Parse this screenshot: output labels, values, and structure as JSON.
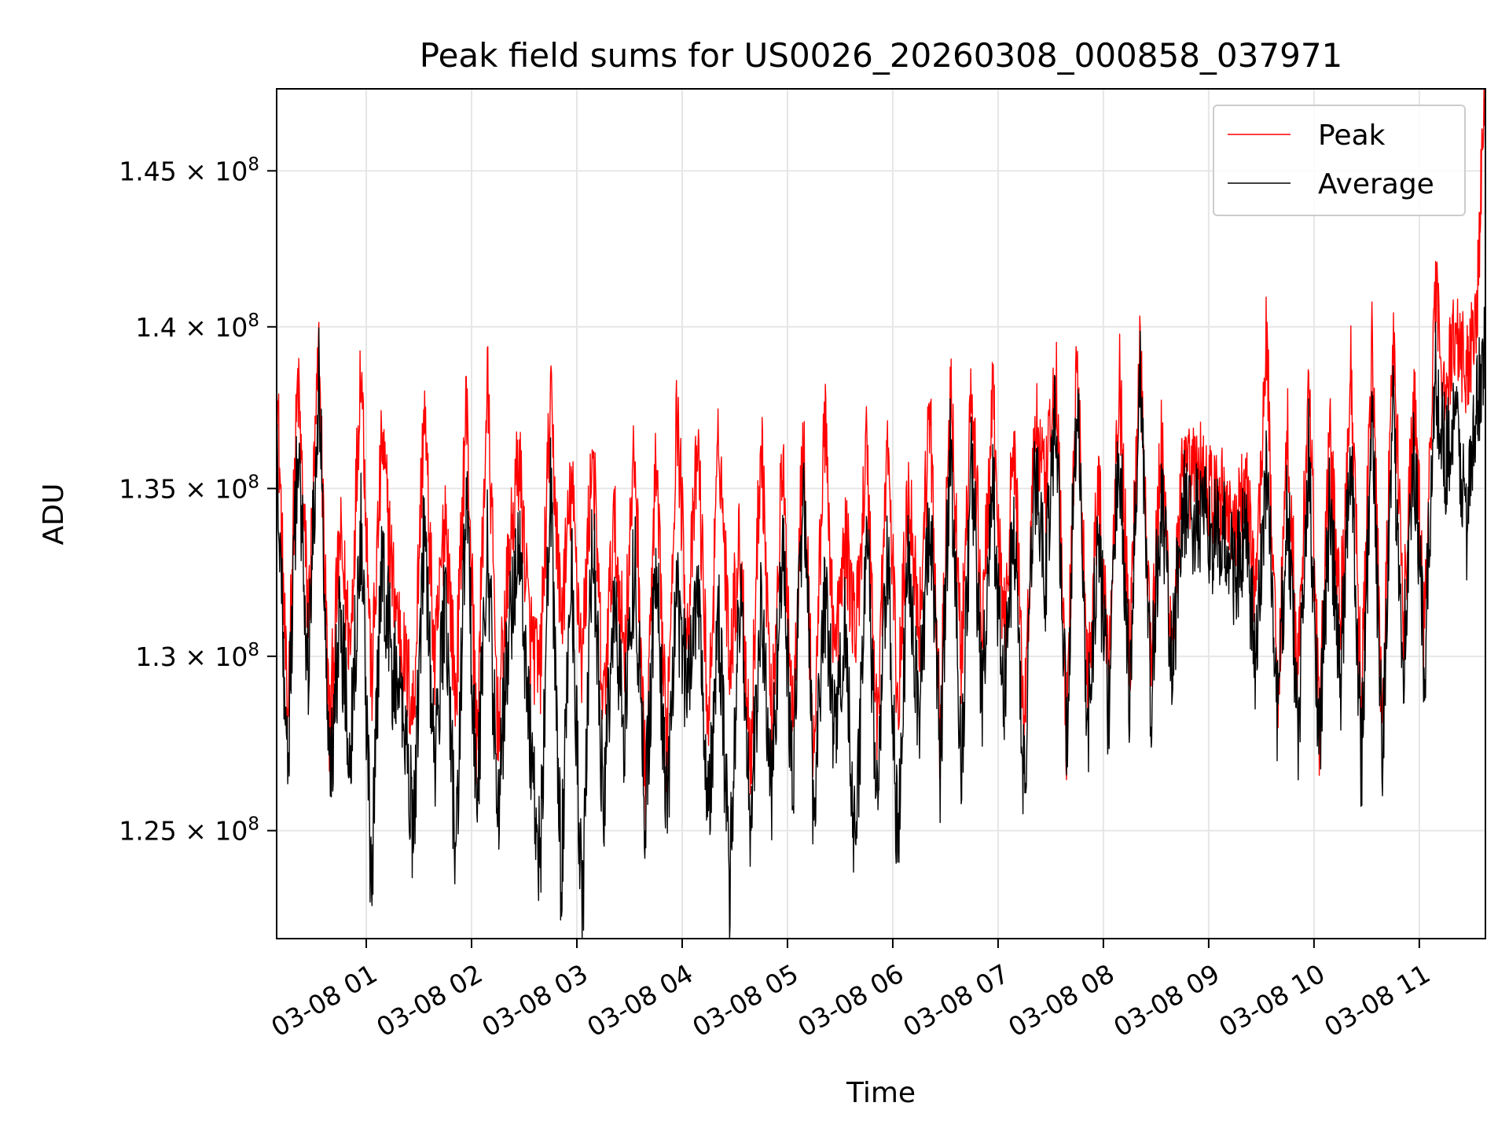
{
  "chart_data": {
    "type": "line",
    "title": "Peak field sums for US0026_20260308_000858_037971",
    "xlabel": "Time",
    "ylabel": "ADU",
    "yscale": "log",
    "ylim": [
      122000000,
      147700000
    ],
    "xlim_hours": [
      0.149,
      11.628
    ],
    "grid": true,
    "legend_position": "top-right",
    "x_ticks": [
      {
        "hour": 1,
        "label": "03-08 01"
      },
      {
        "hour": 2,
        "label": "03-08 02"
      },
      {
        "hour": 3,
        "label": "03-08 03"
      },
      {
        "hour": 4,
        "label": "03-08 04"
      },
      {
        "hour": 5,
        "label": "03-08 05"
      },
      {
        "hour": 6,
        "label": "03-08 06"
      },
      {
        "hour": 7,
        "label": "03-08 07"
      },
      {
        "hour": 8,
        "label": "03-08 08"
      },
      {
        "hour": 9,
        "label": "03-08 09"
      },
      {
        "hour": 10,
        "label": "03-08 10"
      },
      {
        "hour": 11,
        "label": "03-08 11"
      }
    ],
    "y_ticks": [
      {
        "value": 125000000,
        "mantissa": "1.25",
        "exponent": "8"
      },
      {
        "value": 130000000,
        "mantissa": "1.3",
        "exponent": "8"
      },
      {
        "value": 135000000,
        "mantissa": "1.35",
        "exponent": "8"
      },
      {
        "value": 140000000,
        "mantissa": "1.4",
        "exponent": "8"
      },
      {
        "value": 145000000,
        "mantissa": "1.45",
        "exponent": "8"
      }
    ],
    "series": [
      {
        "name": "Peak",
        "color": "#ff0000",
        "x_hours": [
          0.15,
          0.25,
          0.35,
          0.45,
          0.55,
          0.65,
          0.75,
          0.85,
          0.95,
          1.05,
          1.15,
          1.25,
          1.35,
          1.45,
          1.55,
          1.65,
          1.75,
          1.85,
          1.95,
          2.05,
          2.15,
          2.25,
          2.35,
          2.45,
          2.55,
          2.65,
          2.75,
          2.85,
          2.95,
          3.05,
          3.15,
          3.25,
          3.35,
          3.45,
          3.55,
          3.65,
          3.75,
          3.85,
          3.95,
          4.05,
          4.15,
          4.25,
          4.35,
          4.45,
          4.55,
          4.65,
          4.75,
          4.85,
          4.95,
          5.05,
          5.15,
          5.25,
          5.35,
          5.45,
          5.55,
          5.65,
          5.75,
          5.85,
          5.95,
          6.05,
          6.15,
          6.25,
          6.35,
          6.45,
          6.55,
          6.65,
          6.75,
          6.85,
          6.95,
          7.05,
          7.15,
          7.25,
          7.35,
          7.45,
          7.55,
          7.65,
          7.75,
          7.85,
          7.95,
          8.05,
          8.15,
          8.25,
          8.35,
          8.45,
          8.55,
          8.65,
          8.75,
          8.85,
          8.95,
          9.05,
          9.15,
          9.25,
          9.35,
          9.45,
          9.55,
          9.65,
          9.75,
          9.85,
          9.95,
          10.05,
          10.15,
          10.25,
          10.35,
          10.45,
          10.55,
          10.65,
          10.75,
          10.85,
          10.95,
          11.05,
          11.15,
          11.25,
          11.35,
          11.45,
          11.55,
          11.62
        ],
        "values": [
          138.5,
          128.0,
          138.3,
          131.0,
          139.1,
          127.6,
          133.5,
          130.2,
          139.2,
          129.1,
          136.5,
          132.3,
          130.0,
          128.4,
          137.6,
          129.5,
          134.5,
          128.6,
          137.8,
          127.3,
          138.4,
          127.9,
          132.5,
          136.0,
          130.7,
          129.4,
          137.6,
          131.0,
          135.1,
          129.8,
          136.4,
          128.2,
          134.0,
          130.1,
          136.2,
          126.1,
          135.6,
          127.3,
          137.5,
          130.6,
          136.4,
          127.8,
          136.7,
          130.0,
          133.5,
          126.8,
          137.0,
          127.8,
          135.8,
          128.2,
          136.4,
          126.9,
          137.3,
          129.9,
          133.4,
          130.7,
          136.3,
          127.8,
          136.5,
          128.4,
          135.3,
          130.7,
          137.5,
          127.6,
          138.0,
          129.7,
          138.1,
          130.8,
          137.6,
          130.4,
          136.4,
          128.0,
          137.1,
          134.7,
          138.5,
          127.7,
          139.0,
          129.1,
          135.2,
          129.6,
          138.8,
          129.8,
          139.6,
          130.0,
          136.3,
          130.5,
          135.2,
          135.4,
          135.6,
          134.5,
          134.9,
          133.5,
          135.0,
          132.0,
          139.8,
          128.5,
          136.8,
          129.2,
          138.3,
          127.9,
          136.5,
          131.0,
          138.5,
          128.5,
          139.4,
          127.9,
          139.8,
          131.0,
          137.8,
          130.5,
          141.0,
          138.0,
          140.0,
          138.5,
          141.0,
          147.4
        ]
      },
      {
        "name": "Average",
        "color": "#000000",
        "x_hours": [
          0.15,
          0.25,
          0.35,
          0.45,
          0.55,
          0.65,
          0.75,
          0.85,
          0.95,
          1.05,
          1.15,
          1.25,
          1.35,
          1.45,
          1.55,
          1.65,
          1.75,
          1.85,
          1.95,
          2.05,
          2.15,
          2.25,
          2.35,
          2.45,
          2.55,
          2.65,
          2.75,
          2.85,
          2.95,
          3.05,
          3.15,
          3.25,
          3.35,
          3.45,
          3.55,
          3.65,
          3.75,
          3.85,
          3.95,
          4.05,
          4.15,
          4.25,
          4.35,
          4.45,
          4.55,
          4.65,
          4.75,
          4.85,
          4.95,
          5.05,
          5.15,
          5.25,
          5.35,
          5.45,
          5.55,
          5.65,
          5.75,
          5.85,
          5.95,
          6.05,
          6.15,
          6.25,
          6.35,
          6.45,
          6.55,
          6.65,
          6.75,
          6.85,
          6.95,
          7.05,
          7.15,
          7.25,
          7.35,
          7.45,
          7.55,
          7.65,
          7.75,
          7.85,
          7.95,
          8.05,
          8.15,
          8.25,
          8.35,
          8.45,
          8.55,
          8.65,
          8.75,
          8.85,
          8.95,
          9.05,
          9.15,
          9.25,
          9.35,
          9.45,
          9.55,
          9.65,
          9.75,
          9.85,
          9.95,
          10.05,
          10.15,
          10.25,
          10.35,
          10.45,
          10.55,
          10.65,
          10.75,
          10.85,
          10.95,
          11.05,
          11.15,
          11.25,
          11.35,
          11.45,
          11.55,
          11.62
        ],
        "values": [
          137.0,
          126.5,
          136.5,
          129.5,
          138.5,
          126.4,
          131.0,
          127.5,
          134.0,
          123.3,
          133.0,
          129.5,
          128.5,
          125.0,
          134.0,
          126.5,
          132.0,
          124.0,
          135.0,
          125.5,
          133.5,
          125.5,
          130.5,
          133.5,
          128.0,
          124.0,
          135.0,
          123.5,
          133.0,
          122.2,
          134.0,
          125.5,
          131.5,
          128.0,
          133.0,
          125.3,
          133.0,
          125.5,
          131.5,
          129.0,
          132.5,
          125.3,
          131.0,
          123.5,
          132.0,
          125.0,
          131.5,
          126.0,
          133.5,
          126.0,
          135.5,
          125.5,
          132.0,
          127.5,
          131.0,
          124.0,
          134.0,
          125.5,
          133.0,
          124.0,
          133.5,
          128.0,
          134.5,
          127.0,
          136.5,
          126.5,
          136.0,
          128.5,
          135.0,
          128.5,
          134.0,
          126.0,
          135.5,
          132.5,
          137.5,
          127.5,
          138.5,
          127.5,
          133.5,
          128.5,
          136.5,
          128.5,
          139.0,
          128.5,
          135.0,
          129.5,
          134.5,
          134.0,
          134.0,
          133.5,
          133.5,
          132.5,
          133.5,
          129.5,
          136.0,
          128.0,
          134.5,
          127.5,
          136.0,
          127.5,
          134.5,
          129.0,
          136.5,
          127.0,
          137.0,
          127.5,
          137.0,
          130.0,
          136.0,
          129.5,
          138.5,
          136.0,
          137.0,
          134.0,
          137.5,
          139.5
        ]
      }
    ]
  }
}
